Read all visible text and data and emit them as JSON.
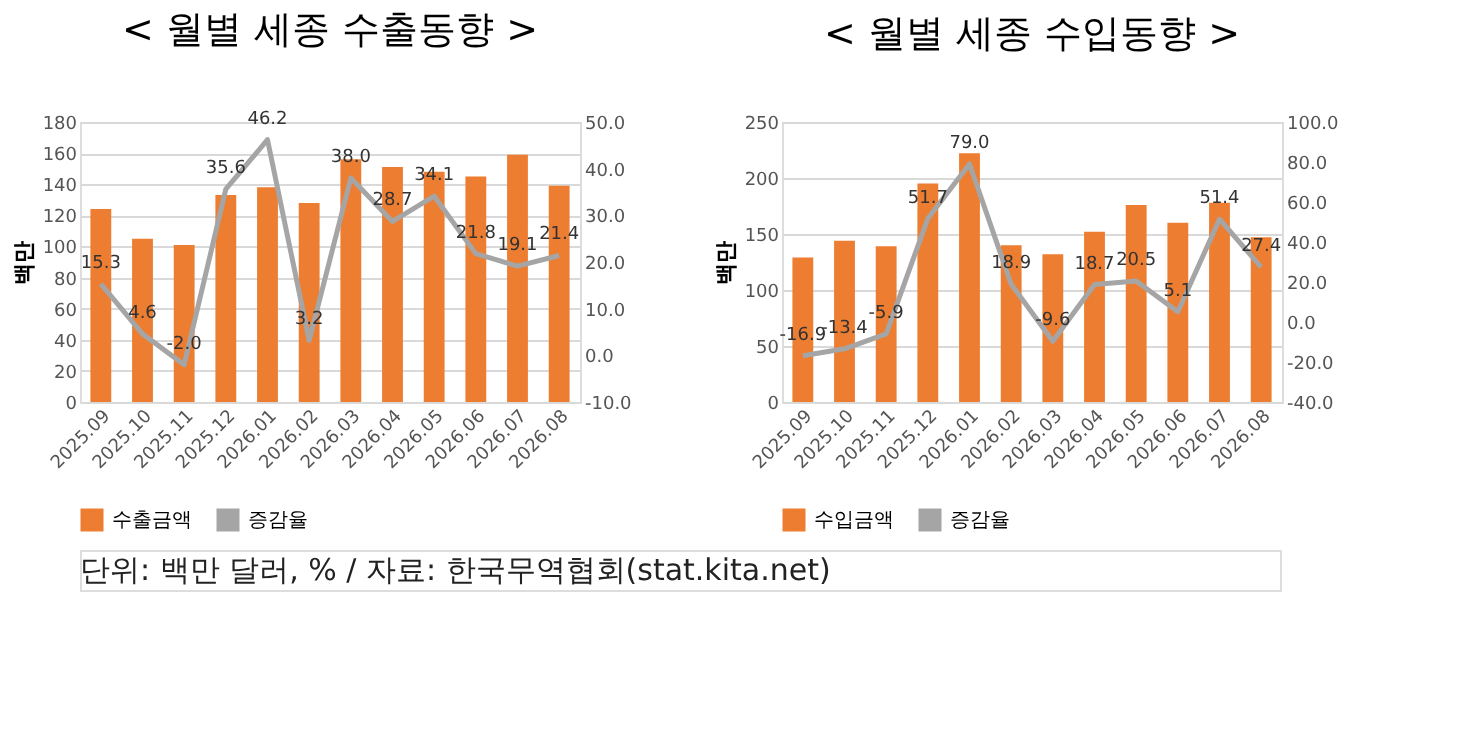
{
  "chart_data": [
    {
      "type": "bar",
      "title": "< 월별 세종 수출동향 >",
      "ylabel": "백만",
      "categories": [
        "2025.09",
        "2025.10",
        "2025.11",
        "2025.12",
        "2026.01",
        "2026.02",
        "2026.03",
        "2026.04",
        "2026.05",
        "2026.06",
        "2026.07",
        "2026.08"
      ],
      "series": [
        {
          "name": "수출금액",
          "type": "bar",
          "color": "#ed7d31",
          "values": [
            124,
            105,
            101,
            133,
            138,
            128,
            156,
            151,
            148,
            145,
            159,
            139
          ]
        },
        {
          "name": "증감율",
          "type": "line",
          "axis": "y2",
          "color": "#a5a5a5",
          "values": [
            15.3,
            4.6,
            -2.0,
            35.6,
            46.2,
            3.2,
            38.0,
            28.7,
            34.1,
            21.8,
            19.1,
            21.4
          ],
          "value_labels": [
            "15.3",
            "4.6",
            "-2.0",
            "35.6",
            "46.2",
            "3.2",
            "38.0",
            "28.7",
            "34.1",
            "21.8",
            "19.1",
            "21.4"
          ]
        }
      ],
      "ylim": [
        0,
        180
      ],
      "yticks": [
        0,
        20,
        40,
        60,
        80,
        100,
        120,
        140,
        160,
        180
      ],
      "y2lim": [
        -10,
        50
      ],
      "y2ticks": [
        {
          "value": -10,
          "label": "-10.0"
        },
        {
          "value": 0,
          "label": "0.0"
        },
        {
          "value": 10,
          "label": "10.0"
        },
        {
          "value": 20,
          "label": "20.0"
        },
        {
          "value": 30,
          "label": "30.0"
        },
        {
          "value": 40,
          "label": "40.0"
        },
        {
          "value": 50,
          "label": "50.0"
        }
      ],
      "grid": "y",
      "legend": "bottom",
      "marker": "none",
      "line_style": "solid",
      "annotations": [
        "단위: 백만 달러, % / 자료: 한국무역협회(stat.kita.net)"
      ]
    },
    {
      "type": "bar",
      "title": "< 월별 세종 수입동향 >",
      "ylabel": "백만",
      "categories": [
        "2025.09",
        "2025.10",
        "2025.11",
        "2025.12",
        "2026.01",
        "2026.02",
        "2026.03",
        "2026.04",
        "2026.05",
        "2026.06",
        "2026.07",
        "2026.08"
      ],
      "series": [
        {
          "name": "수입금액",
          "type": "bar",
          "color": "#ed7d31",
          "values": [
            129,
            144,
            139,
            195,
            222,
            140,
            132,
            152,
            176,
            160,
            178,
            147
          ]
        },
        {
          "name": "증감율",
          "type": "line",
          "axis": "y2",
          "color": "#a5a5a5",
          "values": [
            -16.9,
            -13.4,
            -5.9,
            51.7,
            79.0,
            18.9,
            -9.6,
            18.7,
            20.5,
            5.1,
            51.4,
            27.4
          ],
          "value_labels": [
            "-16.9",
            "-13.4",
            "-5.9",
            "51.7",
            "79.0",
            "18.9",
            "-9.6",
            "18.7",
            "20.5",
            "5.1",
            "51.4",
            "27.4"
          ]
        }
      ],
      "ylim": [
        0,
        250
      ],
      "yticks": [
        0,
        50,
        100,
        150,
        200,
        250
      ],
      "y2lim": [
        -40,
        100
      ],
      "y2ticks": [
        {
          "value": -40,
          "label": "-40.0"
        },
        {
          "value": -20,
          "label": "-20.0"
        },
        {
          "value": 0,
          "label": "0.0"
        },
        {
          "value": 20,
          "label": "20.0"
        },
        {
          "value": 40,
          "label": "40.0"
        },
        {
          "value": 60,
          "label": "60.0"
        },
        {
          "value": 80,
          "label": "80.0"
        },
        {
          "value": 100,
          "label": "100.0"
        }
      ],
      "grid": "y",
      "legend": "bottom",
      "marker": "none",
      "line_style": "solid"
    }
  ]
}
